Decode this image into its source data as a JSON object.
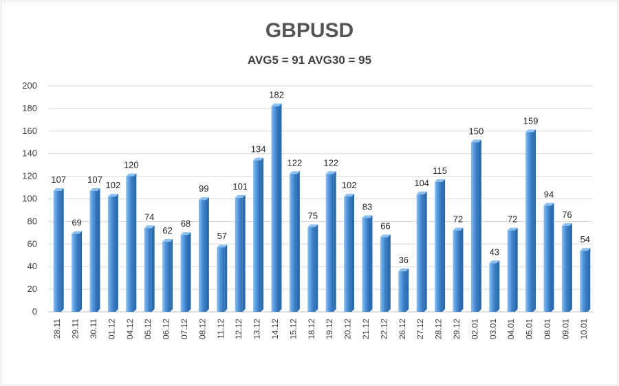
{
  "chart_data": {
    "type": "bar",
    "title": "GBPUSD",
    "subtitle": "AVG5 = 91 AVG30 = 95",
    "categories": [
      "28.11",
      "29.11",
      "30.11",
      "01.12",
      "04.12",
      "05.12",
      "06.12",
      "07.12",
      "08.12",
      "11.12",
      "12.12",
      "13.12",
      "14.12",
      "15.12",
      "18.12",
      "19.12",
      "20.12",
      "21.12",
      "22.12",
      "26.12",
      "27.12",
      "28.12",
      "29.12",
      "02.01",
      "03.01",
      "04.01",
      "05.01",
      "08.01",
      "09.01",
      "10.01"
    ],
    "values": [
      107,
      69,
      107,
      102,
      120,
      74,
      62,
      68,
      99,
      57,
      101,
      134,
      182,
      122,
      75,
      122,
      102,
      83,
      66,
      36,
      104,
      115,
      72,
      150,
      43,
      72,
      159,
      94,
      76,
      54
    ],
    "ylim": [
      0,
      200
    ],
    "yticks": [
      0,
      20,
      40,
      60,
      80,
      100,
      120,
      140,
      160,
      180,
      200
    ],
    "grid": true,
    "bar_color": "#4a8fd8",
    "bar_dark": "#2b6cb0",
    "bar_light": "#8cc0f0"
  }
}
